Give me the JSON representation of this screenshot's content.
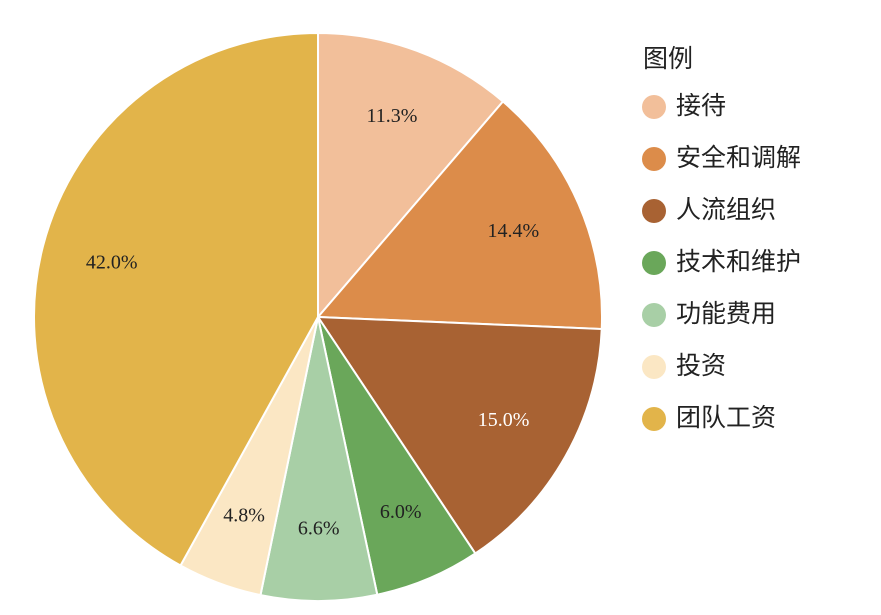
{
  "chart_data": {
    "type": "pie",
    "legend_title": "图例",
    "legend_position": "right",
    "categories": [
      "接待",
      "安全和调解",
      "人流组织",
      "技术和维护",
      "功能费用",
      "投资",
      "团队工资"
    ],
    "values": [
      11.3,
      14.4,
      15.0,
      6.0,
      6.6,
      4.8,
      42.0
    ],
    "value_labels": [
      "11.3%",
      "14.4%",
      "15.0%",
      "6.0%",
      "6.6%",
      "4.8%",
      "42.0%"
    ],
    "colors": [
      "#f2bf9a",
      "#dc8c4a",
      "#a86233",
      "#6aa75a",
      "#a8cfa6",
      "#fbe7c4",
      "#e2b44a"
    ]
  }
}
